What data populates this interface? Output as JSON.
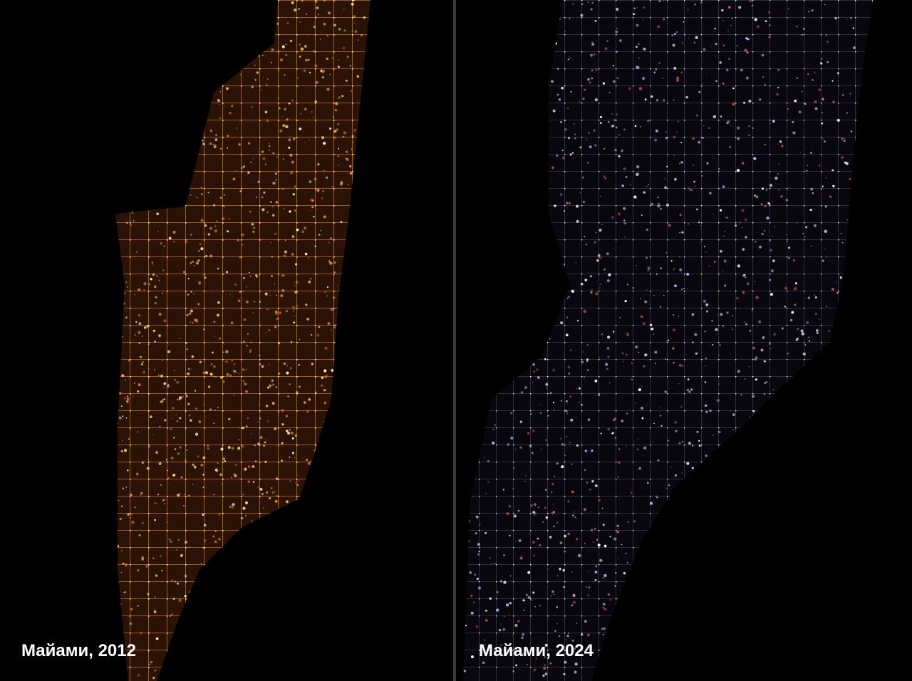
{
  "panels": [
    {
      "caption": "Майами, 2012"
    },
    {
      "caption": "Майами, 2024"
    }
  ]
}
